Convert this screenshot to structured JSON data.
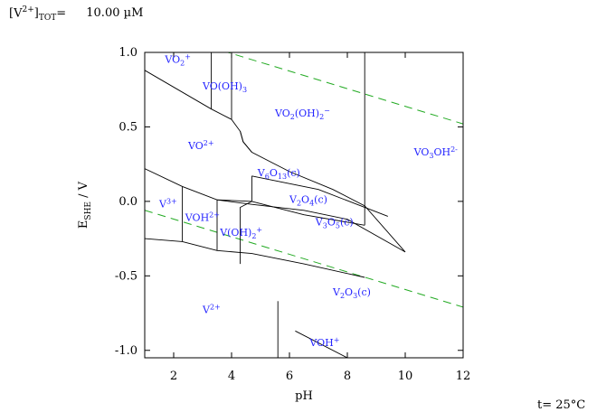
{
  "header": {
    "conc_symbol": "[V",
    "conc_charge": "2+",
    "conc_bracket": "]",
    "conc_subscript": "TOT",
    "conc_equals": "=",
    "conc_value": "10.00 µM"
  },
  "footer": {
    "temperature": "t= 25°C"
  },
  "chart_data": {
    "type": "line",
    "title": "",
    "xlabel": "pH",
    "ylabel_main": "E",
    "ylabel_sub": "SHE",
    "ylabel_unit": " / V",
    "xlim": [
      1,
      12
    ],
    "ylim": [
      -1.05,
      1.0
    ],
    "xticks": [
      2,
      4,
      6,
      8,
      10,
      12
    ],
    "xtick_labels": [
      "2",
      "4",
      "6",
      "8",
      "10",
      "12"
    ],
    "yticks": [
      1.0,
      0.5,
      0.0,
      -0.5,
      -1.0
    ],
    "ytick_labels": [
      "1.0",
      "0.5",
      "0.0",
      "-0.5",
      "-1.0"
    ],
    "colors": {
      "boundary": "#000000",
      "water": "#22aa22",
      "labels": "#2424ff"
    },
    "water_lines": [
      {
        "x": [
          1,
          12
        ],
        "y": [
          1.17,
          0.52
        ]
      },
      {
        "x": [
          1,
          12
        ],
        "y": [
          -0.06,
          -0.71
        ]
      }
    ],
    "boundaries": [
      {
        "x": [
          1.0,
          3.3,
          4.0,
          4.3,
          4.4,
          4.7,
          6.0,
          7.5,
          8.6,
          10.0
        ],
        "y": [
          0.88,
          0.62,
          0.55,
          0.47,
          0.4,
          0.33,
          0.2,
          0.08,
          -0.03,
          -0.34
        ]
      },
      {
        "x": [
          3.3,
          3.3
        ],
        "y": [
          1.0,
          0.62
        ]
      },
      {
        "x": [
          4.0,
          4.0
        ],
        "y": [
          1.0,
          0.55
        ]
      },
      {
        "x": [
          4.3,
          4.4,
          4.7
        ],
        "y": [
          0.47,
          0.4,
          0.33
        ]
      },
      {
        "x": [
          4.7,
          4.7,
          4.3,
          4.3
        ],
        "y": [
          0.17,
          0.0,
          -0.04,
          -0.42
        ]
      },
      {
        "x": [
          8.6,
          8.6
        ],
        "y": [
          1.0,
          -0.16
        ]
      },
      {
        "x": [
          1.0,
          2.3,
          3.5,
          4.7,
          6.5,
          8.0,
          10.0
        ],
        "y": [
          0.22,
          0.1,
          0.01,
          -0.02,
          -0.06,
          -0.12,
          -0.34
        ]
      },
      {
        "x": [
          4.7,
          6.5,
          8.6
        ],
        "y": [
          0.0,
          -0.09,
          -0.16
        ]
      },
      {
        "x": [
          2.3,
          3.5,
          4.7,
          6.5,
          8.6
        ],
        "y": [
          -0.27,
          -0.33,
          -0.35,
          -0.42,
          -0.51
        ]
      },
      {
        "x": [
          4.7,
          7.0,
          9.4
        ],
        "y": [
          0.17,
          0.08,
          -0.1
        ]
      },
      {
        "x": [
          1.0,
          2.3
        ],
        "y": [
          -0.25,
          -0.27
        ]
      },
      {
        "x": [
          2.3,
          2.3
        ],
        "y": [
          0.1,
          -0.27
        ]
      },
      {
        "x": [
          3.5,
          3.5
        ],
        "y": [
          0.01,
          -0.33
        ]
      },
      {
        "x": [
          3.5,
          4.7
        ],
        "y": [
          0.01,
          0.0
        ]
      },
      {
        "x": [
          5.6,
          5.6
        ],
        "y": [
          -0.67,
          -1.05
        ]
      },
      {
        "x": [
          6.2,
          8.0
        ],
        "y": [
          -0.87,
          -1.05
        ]
      }
    ],
    "regions": [
      {
        "main": "VO",
        "sub": "2",
        "sup": "+",
        "tail": "",
        "x": 1.7,
        "y": 0.93
      },
      {
        "main": "VO(OH)",
        "sub": "3",
        "sup": "",
        "tail": "",
        "x": 3.0,
        "y": 0.75
      },
      {
        "main": "VO",
        "sub": "2",
        "sup": "",
        "tail": "(OH)",
        "sub2": "2",
        "sup2": "−",
        "x": 5.5,
        "y": 0.57
      },
      {
        "main": "VO",
        "sub": "",
        "sup": "2+",
        "tail": "",
        "x": 2.5,
        "y": 0.35
      },
      {
        "main": "VO",
        "sub": "3",
        "sup": "",
        "tail": "OH",
        "sup2": "2-",
        "x": 10.3,
        "y": 0.31
      },
      {
        "main": "V",
        "sub": "6",
        "sup": "",
        "tail": "O",
        "sub2": "13",
        "tail2": "(c)",
        "x": 4.9,
        "y": 0.17
      },
      {
        "main": "V",
        "sub": "2",
        "sup": "",
        "tail": "O",
        "sub2": "4",
        "tail2": "(c)",
        "x": 6.0,
        "y": -0.01
      },
      {
        "main": "V",
        "sub": "",
        "sup": "3+",
        "tail": "",
        "x": 1.5,
        "y": -0.04
      },
      {
        "main": "VOH",
        "sub": "",
        "sup": "2+",
        "tail": "",
        "x": 2.4,
        "y": -0.13
      },
      {
        "main": "V(OH)",
        "sub": "2",
        "sup": "+",
        "tail": "",
        "x": 3.6,
        "y": -0.23
      },
      {
        "main": "V",
        "sub": "3",
        "sup": "",
        "tail": "O",
        "sub2": "5",
        "tail2": "(c)",
        "x": 6.9,
        "y": -0.16
      },
      {
        "main": "V",
        "sub": "2",
        "sup": "",
        "tail": "O",
        "sub2": "3",
        "tail2": "(c)",
        "x": 7.5,
        "y": -0.63
      },
      {
        "main": "V",
        "sub": "",
        "sup": "2+",
        "tail": "",
        "x": 3.0,
        "y": -0.75
      },
      {
        "main": "VOH",
        "sub": "",
        "sup": "+",
        "tail": "",
        "x": 6.7,
        "y": -0.97
      }
    ]
  }
}
